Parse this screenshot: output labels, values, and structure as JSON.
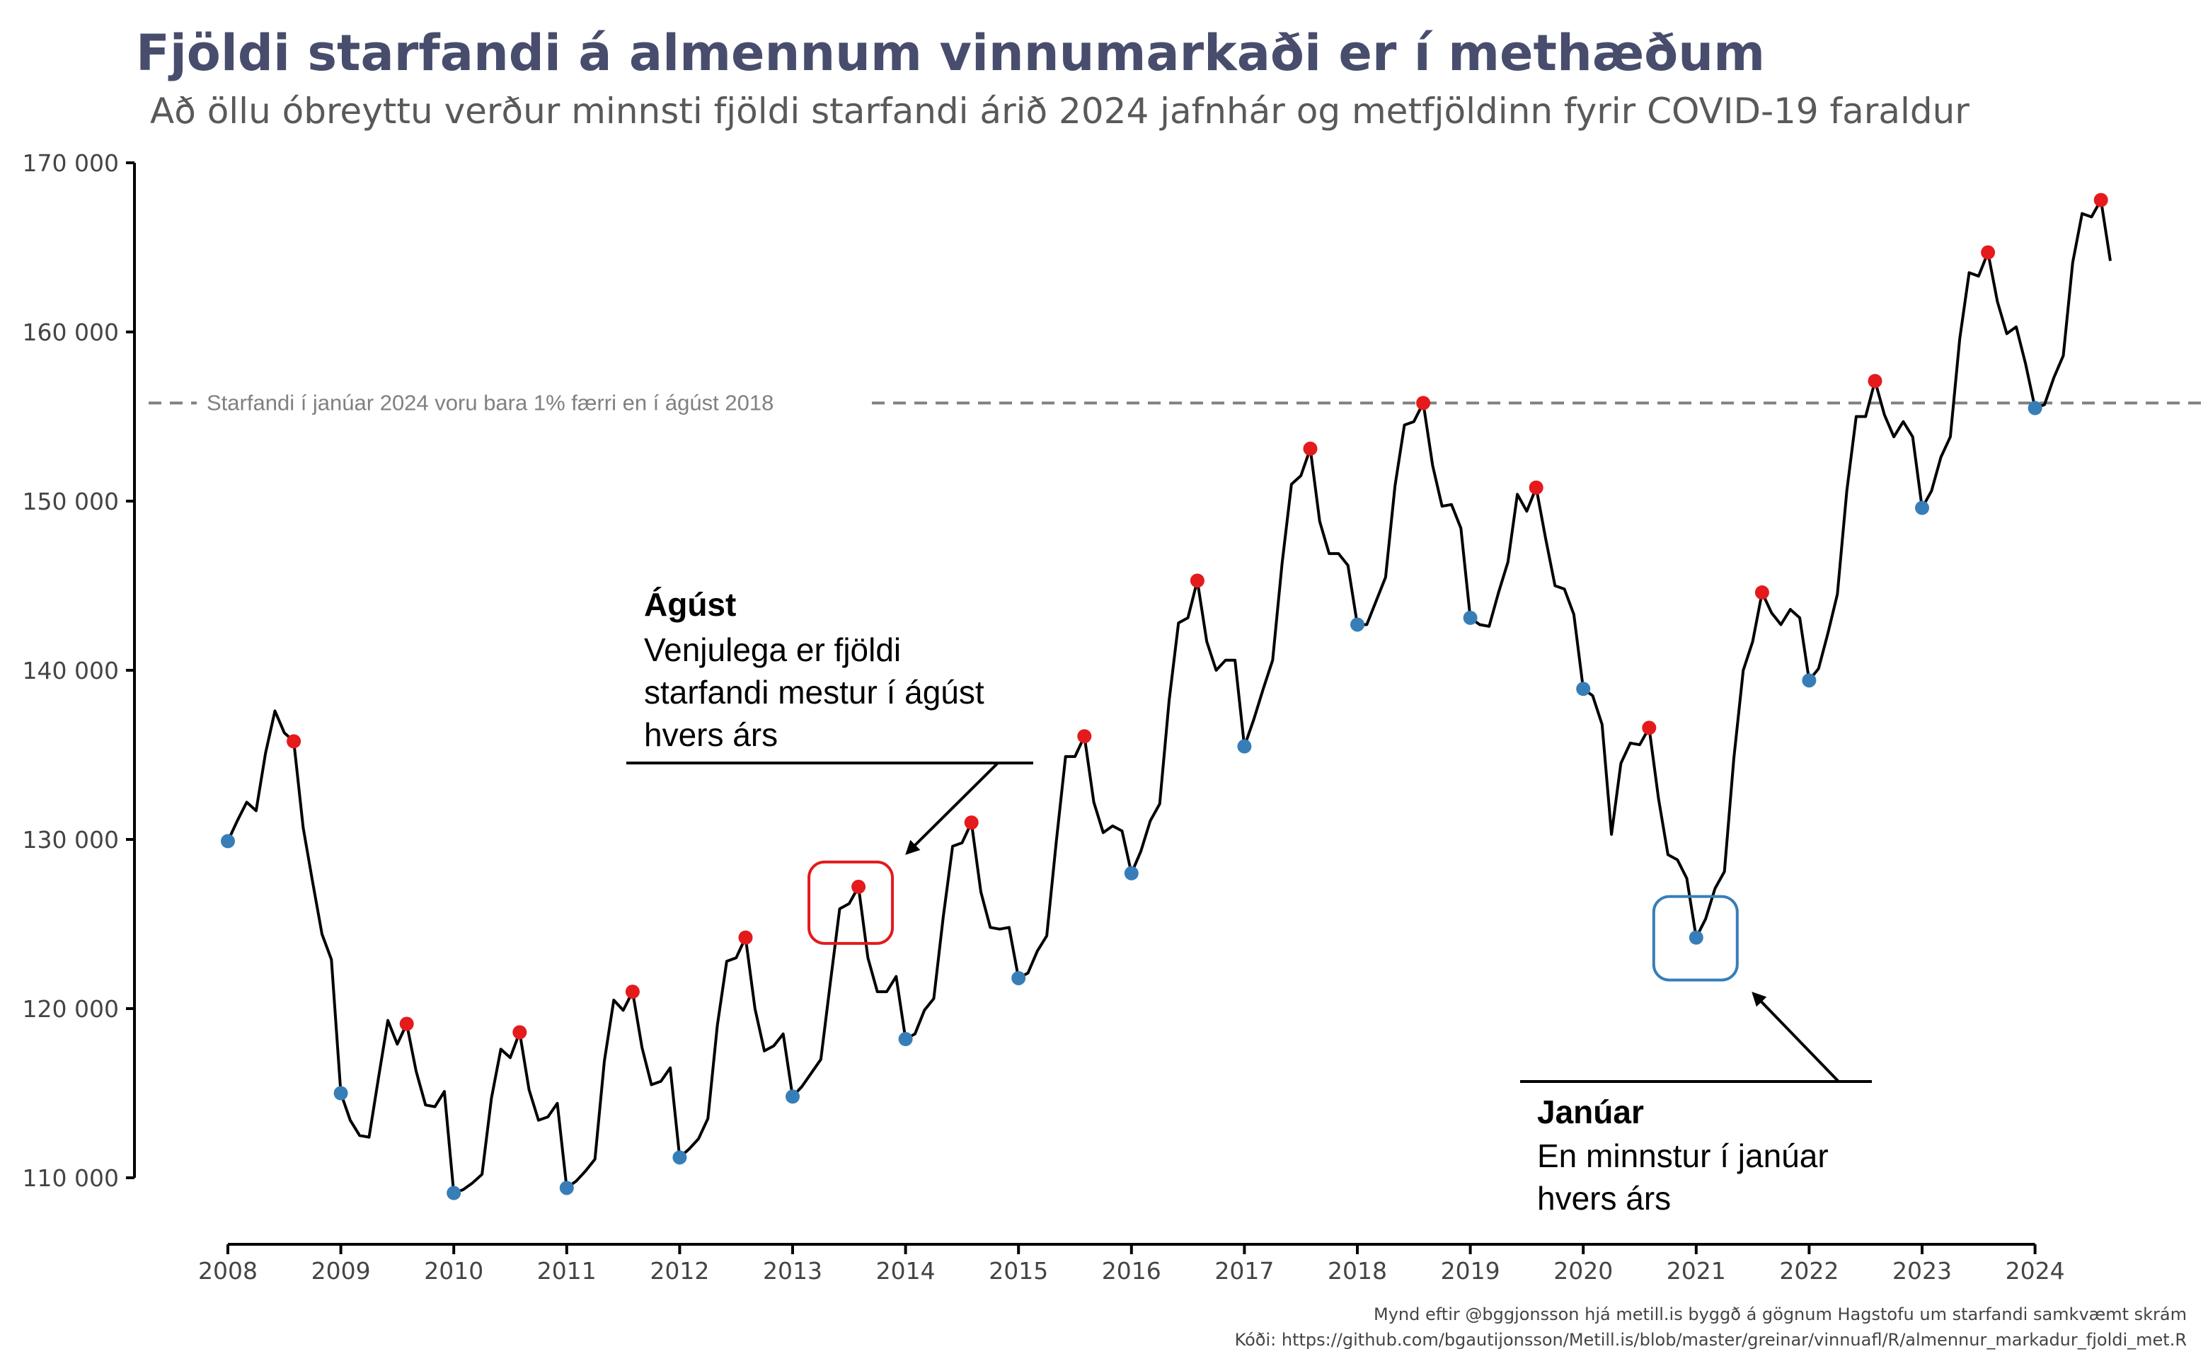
{
  "title": "Fjöldi starfandi á almennum vinnumarkaði er í methæðum",
  "subtitle": "Að öllu óbreyttu verður minnsti fjöldi starfandi árið 2024 jafnhár og metfjöldinn fyrir COVID-19 faraldur",
  "caption": {
    "line1": "Mynd eftir @bggjonsson hjá metill.is byggð á gögnum Hagstofu um starfandi samkvæmt skrám",
    "line2": "Kóði: https://github.com/bgautijonsson/Metill.is/blob/master/greinar/vinnuafl/R/almennur_markadur_fjoldi_met.R"
  },
  "colors": {
    "title": "#484d6d",
    "line": "#000000",
    "august_point": "#e41a1c",
    "january_point": "#377eb8",
    "reference_line": "#808080"
  },
  "chart_data": {
    "type": "line",
    "xlabel": "",
    "ylabel": "",
    "xlim": [
      2008,
      2024.75
    ],
    "ylim": [
      107000,
      171000
    ],
    "x_ticks": [
      2008,
      2009,
      2010,
      2011,
      2012,
      2013,
      2014,
      2015,
      2016,
      2017,
      2018,
      2019,
      2020,
      2021,
      2022,
      2023,
      2024
    ],
    "y_ticks": [
      110000,
      120000,
      130000,
      140000,
      150000,
      160000,
      170000
    ],
    "y_tick_labels": [
      "110 000",
      "120 000",
      "130 000",
      "140 000",
      "150 000",
      "160 000",
      "170 000"
    ],
    "grid": false,
    "start": "2008-01",
    "values": [
      129900,
      131100,
      132200,
      131700,
      135100,
      137600,
      136300,
      135800,
      130700,
      127500,
      124400,
      122900,
      115000,
      113400,
      112500,
      112400,
      115900,
      119300,
      117900,
      119100,
      116300,
      114300,
      114200,
      115100,
      109100,
      109300,
      109700,
      110200,
      114700,
      117600,
      117100,
      118600,
      115200,
      113400,
      113600,
      114400,
      109400,
      109800,
      110400,
      111100,
      116900,
      120500,
      119900,
      121000,
      117700,
      115500,
      115700,
      116500,
      111200,
      111700,
      112300,
      113500,
      119000,
      122800,
      123000,
      124200,
      120000,
      117500,
      117800,
      118500,
      114800,
      115400,
      116200,
      117000,
      121500,
      125900,
      126200,
      127200,
      123000,
      121000,
      121000,
      121900,
      118200,
      118500,
      119900,
      120600,
      125400,
      129600,
      129800,
      131000,
      126900,
      124800,
      124700,
      124800,
      121800,
      122100,
      123400,
      124300,
      129800,
      134900,
      134900,
      136100,
      132200,
      130400,
      130800,
      130500,
      128000,
      129300,
      131100,
      132100,
      138200,
      142800,
      143100,
      145300,
      141700,
      140000,
      140600,
      140600,
      135500,
      137100,
      138900,
      140600,
      146300,
      151000,
      151500,
      153100,
      148800,
      146900,
      146900,
      146200,
      142700,
      142700,
      144100,
      145500,
      150900,
      154500,
      154700,
      155800,
      152100,
      149700,
      149800,
      148400,
      143100,
      142700,
      142600,
      144600,
      146400,
      150400,
      149400,
      150800,
      147800,
      145000,
      144800,
      143300,
      138900,
      138500,
      136800,
      130300,
      134500,
      135700,
      135600,
      136600,
      132400,
      129100,
      128800,
      127700,
      124200,
      125300,
      127100,
      128100,
      134800,
      140000,
      141700,
      144600,
      143400,
      142700,
      143600,
      143100,
      139400,
      140100,
      142200,
      144500,
      150600,
      155000,
      155000,
      157100,
      155100,
      153800,
      154700,
      153800,
      149600,
      150600,
      152600,
      153800,
      159600,
      163500,
      163300,
      164700,
      161800,
      159900,
      160300,
      158100,
      155500,
      155700,
      157300,
      158600,
      164100,
      167000,
      166800,
      167800,
      164200
    ],
    "august_points_label": "Ágúst",
    "january_points_label": "Janúar",
    "reference_line": {
      "value": 155800,
      "label": "Starfandi í janúar 2024 voru bara 1% færri en í ágúst 2018"
    },
    "annotations": {
      "august": {
        "heading": "Ágúst",
        "lines": [
          "Venjulega er fjöldi",
          "starfandi mestur í ágúst",
          "hvers árs"
        ],
        "highlight": {
          "x": 2013.583,
          "y": 127200
        }
      },
      "january": {
        "heading": "Janúar",
        "lines": [
          "En minnstur í janúar",
          "hvers árs"
        ],
        "highlight": {
          "x": 2021.0,
          "y": 124200
        }
      }
    }
  }
}
